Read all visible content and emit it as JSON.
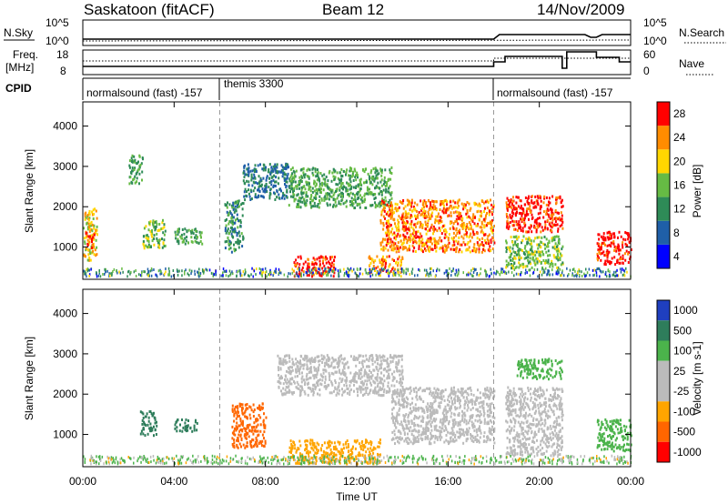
{
  "header": {
    "station": "Saskatoon (fitACF)",
    "beam": "Beam 12",
    "date": "14/Nov/2009"
  },
  "noise_panel": {
    "left_label": "N.Sky",
    "right_label": "N.Search",
    "ticks_left": [
      "10^5",
      "10^0"
    ],
    "ticks_right": [
      "10^5",
      "10^0"
    ]
  },
  "freq_panel": {
    "left_label_1": "Freq.",
    "left_label_2": "[MHz]",
    "right_label": "Nave",
    "ticks_left": [
      "18",
      "8"
    ],
    "ticks_right": [
      "60",
      "0"
    ]
  },
  "cpid_panel": {
    "label": "CPID",
    "modes": [
      "normalsound (fast) -157",
      "themis 3300",
      "normalsound (fast) -157"
    ]
  },
  "power_panel": {
    "ylabel": "Slant Range [km]",
    "yticks": [
      "1000",
      "2000",
      "3000",
      "4000"
    ],
    "colorbar_label": "Power [dB]",
    "colorbar_ticks": [
      "4",
      "8",
      "12",
      "16",
      "20",
      "24",
      "28"
    ],
    "colors": [
      "#0000ff",
      "#1f5fa8",
      "#2e8b57",
      "#66bb44",
      "#ffd700",
      "#ff8c00",
      "#ff0000"
    ]
  },
  "velocity_panel": {
    "ylabel": "Slant Range [km]",
    "yticks": [
      "1000",
      "2000",
      "3000",
      "4000"
    ],
    "colorbar_label": "Velocity [m s-1]",
    "colorbar_ticks": [
      "1000",
      "500",
      "100",
      "25",
      "-25",
      "-100",
      "-500",
      "-1000"
    ],
    "colors": [
      "#1f3fbf",
      "#2e7d5b",
      "#4bb34b",
      "#bbbbbb",
      "#bbbbbb",
      "#ffa500",
      "#ff6600",
      "#ff0000"
    ]
  },
  "xaxis": {
    "ticks": [
      "00:00",
      "04:00",
      "08:00",
      "12:00",
      "16:00",
      "20:00",
      "00:00"
    ],
    "label": "Time UT"
  },
  "chart_data": {
    "type": "heatmap",
    "title": "Saskatoon (fitACF)",
    "x_unit": "UT hours",
    "xlim": [
      0,
      24
    ],
    "ylim": [
      200,
      4600
    ],
    "xlabel": "Time UT",
    "ylabel": "Slant Range [km]",
    "mode_changes_hours": [
      6.0,
      18.0
    ],
    "power_regions": [
      {
        "t0": 0.0,
        "t1": 0.6,
        "r0": 700,
        "r1": 2000,
        "level": 20
      },
      {
        "t0": 0.1,
        "t1": 0.5,
        "r0": 1000,
        "r1": 1400,
        "level": 28
      },
      {
        "t0": 2.0,
        "t1": 2.6,
        "r0": 2600,
        "r1": 3300,
        "level": 14
      },
      {
        "t0": 2.6,
        "t1": 3.6,
        "r0": 1000,
        "r1": 1700,
        "level": 16
      },
      {
        "t0": 4.0,
        "t1": 5.2,
        "r0": 1100,
        "r1": 1500,
        "level": 14
      },
      {
        "t0": 6.2,
        "t1": 7.0,
        "r0": 900,
        "r1": 2200,
        "level": 12
      },
      {
        "t0": 7.0,
        "t1": 9.0,
        "r0": 2200,
        "r1": 3100,
        "level": 10
      },
      {
        "t0": 9.0,
        "t1": 13.5,
        "r0": 2000,
        "r1": 3000,
        "level": 14
      },
      {
        "t0": 13.0,
        "t1": 18.0,
        "r0": 900,
        "r1": 2200,
        "level": 24
      },
      {
        "t0": 9.2,
        "t1": 11.0,
        "r0": 300,
        "r1": 800,
        "level": 28
      },
      {
        "t0": 12.5,
        "t1": 14.0,
        "r0": 400,
        "r1": 800,
        "level": 24
      },
      {
        "t0": 18.5,
        "t1": 21.0,
        "r0": 1400,
        "r1": 2300,
        "level": 28
      },
      {
        "t0": 18.5,
        "t1": 21.0,
        "r0": 500,
        "r1": 1300,
        "level": 16
      },
      {
        "t0": 22.5,
        "t1": 24.0,
        "r0": 600,
        "r1": 1400,
        "level": 28
      }
    ],
    "velocity_regions": [
      {
        "t0": 2.5,
        "t1": 3.2,
        "r0": 1000,
        "r1": 1600,
        "level": 500
      },
      {
        "t0": 4.0,
        "t1": 5.0,
        "r0": 1100,
        "r1": 1400,
        "level": 500
      },
      {
        "t0": 6.5,
        "t1": 8.0,
        "r0": 700,
        "r1": 1800,
        "level": -500
      },
      {
        "t0": 8.5,
        "t1": 14.0,
        "r0": 2000,
        "r1": 3000,
        "level": 0
      },
      {
        "t0": 13.5,
        "t1": 18.0,
        "r0": 800,
        "r1": 2200,
        "level": 0
      },
      {
        "t0": 9.0,
        "t1": 13.0,
        "r0": 300,
        "r1": 900,
        "level": -100
      },
      {
        "t0": 18.5,
        "t1": 21.0,
        "r0": 1300,
        "r1": 2200,
        "level": 0
      },
      {
        "t0": 18.5,
        "t1": 21.0,
        "r0": 500,
        "r1": 1300,
        "level": 0
      },
      {
        "t0": 19.0,
        "t1": 21.0,
        "r0": 2400,
        "r1": 2900,
        "level": 100
      },
      {
        "t0": 22.5,
        "t1": 24.0,
        "r0": 600,
        "r1": 1400,
        "level": 100
      }
    ]
  }
}
